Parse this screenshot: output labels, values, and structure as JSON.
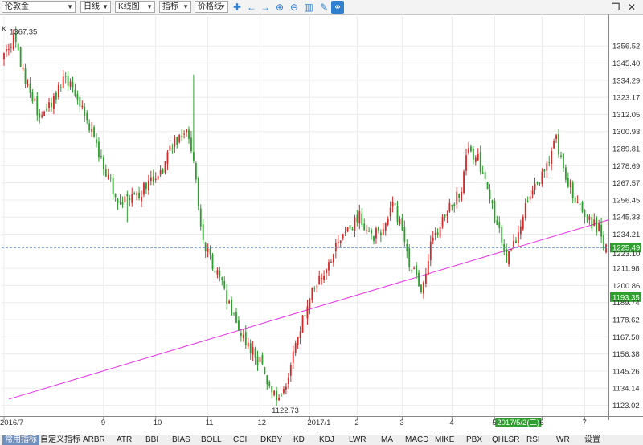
{
  "toolbar": {
    "symbol": "伦敦金",
    "period": "日线",
    "chart_type": "K线图",
    "indicator": "指标",
    "price_line": "价格线",
    "icons": [
      "crosshair-icon",
      "arrow-left-icon",
      "arrow-right-icon",
      "zoom-in-icon",
      "zoom-out-icon",
      "bar-chart-icon",
      "pencil-icon",
      "link-icon",
      "window-restore-icon",
      "close-icon"
    ]
  },
  "chart_data": {
    "type": "candlestick",
    "title": "",
    "corner_label": "K",
    "y_ticks": [
      1356.52,
      1345.4,
      1334.29,
      1323.17,
      1312.05,
      1300.93,
      1289.81,
      1278.69,
      1267.57,
      1256.45,
      1245.33,
      1234.21,
      1211.98,
      1200.86,
      1189.74,
      1178.62,
      1167.5,
      1156.38,
      1145.26,
      1134.14,
      1123.02
    ],
    "y_tick_labels": [
      "1356.52",
      "1345.40",
      "1334.29",
      "1323.17",
      "1312.05",
      "1300.93",
      "1289.81",
      "1278.69",
      "1267.57",
      "1256.45",
      "1245.33",
      "1234.21",
      "1211.98",
      "1200.86",
      "1189.74",
      "1178.62",
      "1167.50",
      "1156.38",
      "1145.26",
      "1134.14",
      "1123.02"
    ],
    "y_range": [
      1116,
      1377
    ],
    "x_labels": [
      "2016/7",
      "9",
      "10",
      "11",
      "12",
      "2017/1",
      "2",
      "3",
      "4",
      "5",
      "6",
      "7"
    ],
    "x_label_positions": [
      0,
      42,
      64,
      86,
      108,
      129,
      149,
      168,
      189,
      207,
      227,
      245
    ],
    "bar_count": 255,
    "high_label": "1367.35",
    "low_label": "1122.73",
    "overlap_label": "1223.10",
    "last_price": "1225.49",
    "last_price_value": 1225.49,
    "marker_price": "1193.35",
    "marker_price_value": 1193.35,
    "crosshair_date": "2017/5/2(二)",
    "crosshair_index": 208,
    "trendline": {
      "start": [
        0,
        1127
      ],
      "end": [
        255,
        1243.5
      ]
    },
    "anchors": [
      [
        0,
        1352
      ],
      [
        4,
        1360
      ],
      [
        10,
        1330
      ],
      [
        15,
        1310
      ],
      [
        20,
        1320
      ],
      [
        25,
        1335
      ],
      [
        30,
        1325
      ],
      [
        35,
        1310
      ],
      [
        38,
        1298
      ],
      [
        42,
        1278
      ],
      [
        46,
        1262
      ],
      [
        50,
        1255
      ],
      [
        55,
        1258
      ],
      [
        60,
        1265
      ],
      [
        66,
        1272
      ],
      [
        72,
        1295
      ],
      [
        78,
        1300
      ],
      [
        80,
        1285
      ],
      [
        82,
        1250
      ],
      [
        84,
        1230
      ],
      [
        88,
        1215
      ],
      [
        92,
        1200
      ],
      [
        96,
        1185
      ],
      [
        100,
        1170
      ],
      [
        104,
        1160
      ],
      [
        108,
        1150
      ],
      [
        112,
        1138
      ],
      [
        115,
        1128
      ],
      [
        118,
        1132
      ],
      [
        121,
        1150
      ],
      [
        124,
        1168
      ],
      [
        127,
        1182
      ],
      [
        130,
        1195
      ],
      [
        135,
        1210
      ],
      [
        140,
        1225
      ],
      [
        145,
        1238
      ],
      [
        150,
        1245
      ],
      [
        155,
        1232
      ],
      [
        160,
        1238
      ],
      [
        164,
        1255
      ],
      [
        168,
        1235
      ],
      [
        172,
        1210
      ],
      [
        176,
        1200
      ],
      [
        180,
        1225
      ],
      [
        185,
        1245
      ],
      [
        190,
        1255
      ],
      [
        193,
        1265
      ],
      [
        196,
        1290
      ],
      [
        200,
        1282
      ],
      [
        204,
        1262
      ],
      [
        208,
        1240
      ],
      [
        212,
        1218
      ],
      [
        215,
        1226
      ],
      [
        218,
        1240
      ],
      [
        222,
        1260
      ],
      [
        226,
        1270
      ],
      [
        230,
        1285
      ],
      [
        233,
        1295
      ],
      [
        236,
        1275
      ],
      [
        240,
        1262
      ],
      [
        244,
        1250
      ],
      [
        248,
        1242
      ],
      [
        251,
        1238
      ],
      [
        253,
        1226
      ],
      [
        255,
        1228
      ]
    ],
    "up_color": "#d42a2a",
    "down_color": "#2e9e2e",
    "trend_color": "#e533e5",
    "dashed_color": "#5b8fcf",
    "badge_color": "#2e9e2e"
  },
  "tabs": [
    {
      "label": "常用指标",
      "active": true
    },
    {
      "label": "自定义指标"
    },
    {
      "label": "ARBR"
    },
    {
      "label": "ATR"
    },
    {
      "label": "BBI"
    },
    {
      "label": "BIAS"
    },
    {
      "label": "BOLL"
    },
    {
      "label": "CCI"
    },
    {
      "label": "DKBY"
    },
    {
      "label": "KD"
    },
    {
      "label": "KDJ"
    },
    {
      "label": "LWR"
    },
    {
      "label": "MA"
    },
    {
      "label": "MACD"
    },
    {
      "label": "MIKE"
    },
    {
      "label": "PBX"
    },
    {
      "label": "QHLSR"
    },
    {
      "label": "RSI"
    },
    {
      "label": "WR"
    },
    {
      "label": "设置"
    }
  ]
}
